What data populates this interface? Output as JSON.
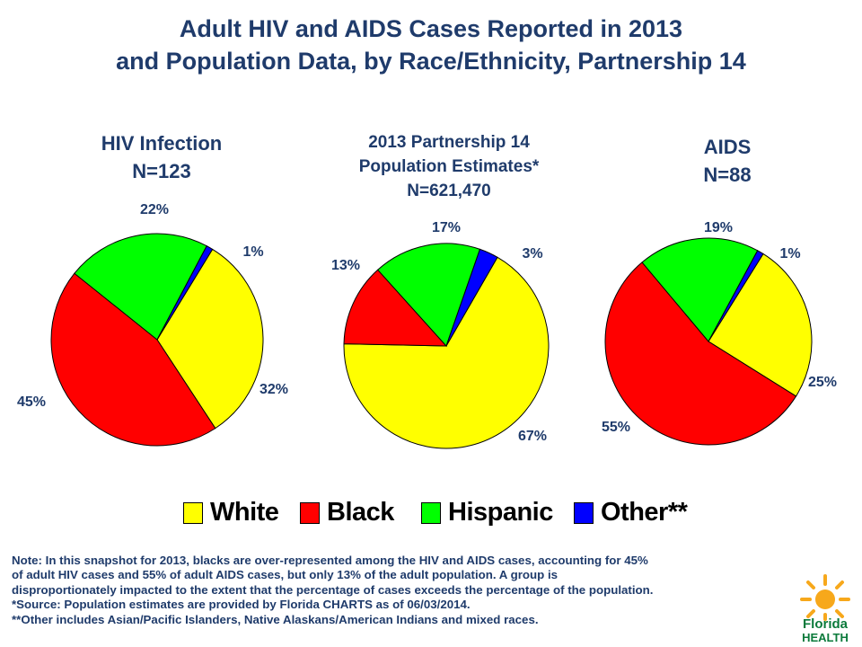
{
  "title_line1": "Adult HIV and AIDS Cases Reported in 2013",
  "title_line2": "and Population Data, by Race/Ethnicity, Partnership 14",
  "colors": {
    "White": "#ffff00",
    "Black": "#ff0000",
    "Hispanic": "#00ff00",
    "Other**": "#0000ff",
    "text": "#1f3b6b"
  },
  "chart_data": [
    {
      "type": "pie",
      "title_line1": "HIV Infection",
      "title_line2": "N=123",
      "categories": [
        "White",
        "Black",
        "Hispanic",
        "Other**"
      ],
      "values": [
        32,
        45,
        22,
        1
      ],
      "labels": [
        "32%",
        "45%",
        "22%",
        "1%"
      ]
    },
    {
      "type": "pie",
      "title_line1": "2013 Partnership 14",
      "title_line2": "Population Estimates*",
      "title_line3": "N=621,470",
      "categories": [
        "White",
        "Black",
        "Hispanic",
        "Other**"
      ],
      "values": [
        67,
        13,
        17,
        3
      ],
      "labels": [
        "67%",
        "13%",
        "17%",
        "3%"
      ]
    },
    {
      "type": "pie",
      "title_line1": "AIDS",
      "title_line2": "N=88",
      "categories": [
        "White",
        "Black",
        "Hispanic",
        "Other**"
      ],
      "values": [
        25,
        55,
        19,
        1
      ],
      "labels": [
        "25%",
        "55%",
        "19%",
        "1%"
      ]
    }
  ],
  "legend": [
    "White",
    "Black",
    "Hispanic",
    "Other**"
  ],
  "note": [
    "Note:  In this snapshot for 2013, blacks are over-represented among the HIV and AIDS cases, accounting for 45%",
    "of adult HIV cases and 55% of adult AIDS cases, but only 13% of the adult population.  A group is",
    "disproportionately impacted to the extent that the percentage of cases exceeds the percentage of the population.",
    "*Source: Population estimates are provided by Florida CHARTS as of 06/03/2014.",
    "**Other includes Asian/Pacific Islanders, Native Alaskans/American Indians and mixed races."
  ],
  "logo": {
    "line1": "Florida",
    "line2": "HEALTH"
  }
}
